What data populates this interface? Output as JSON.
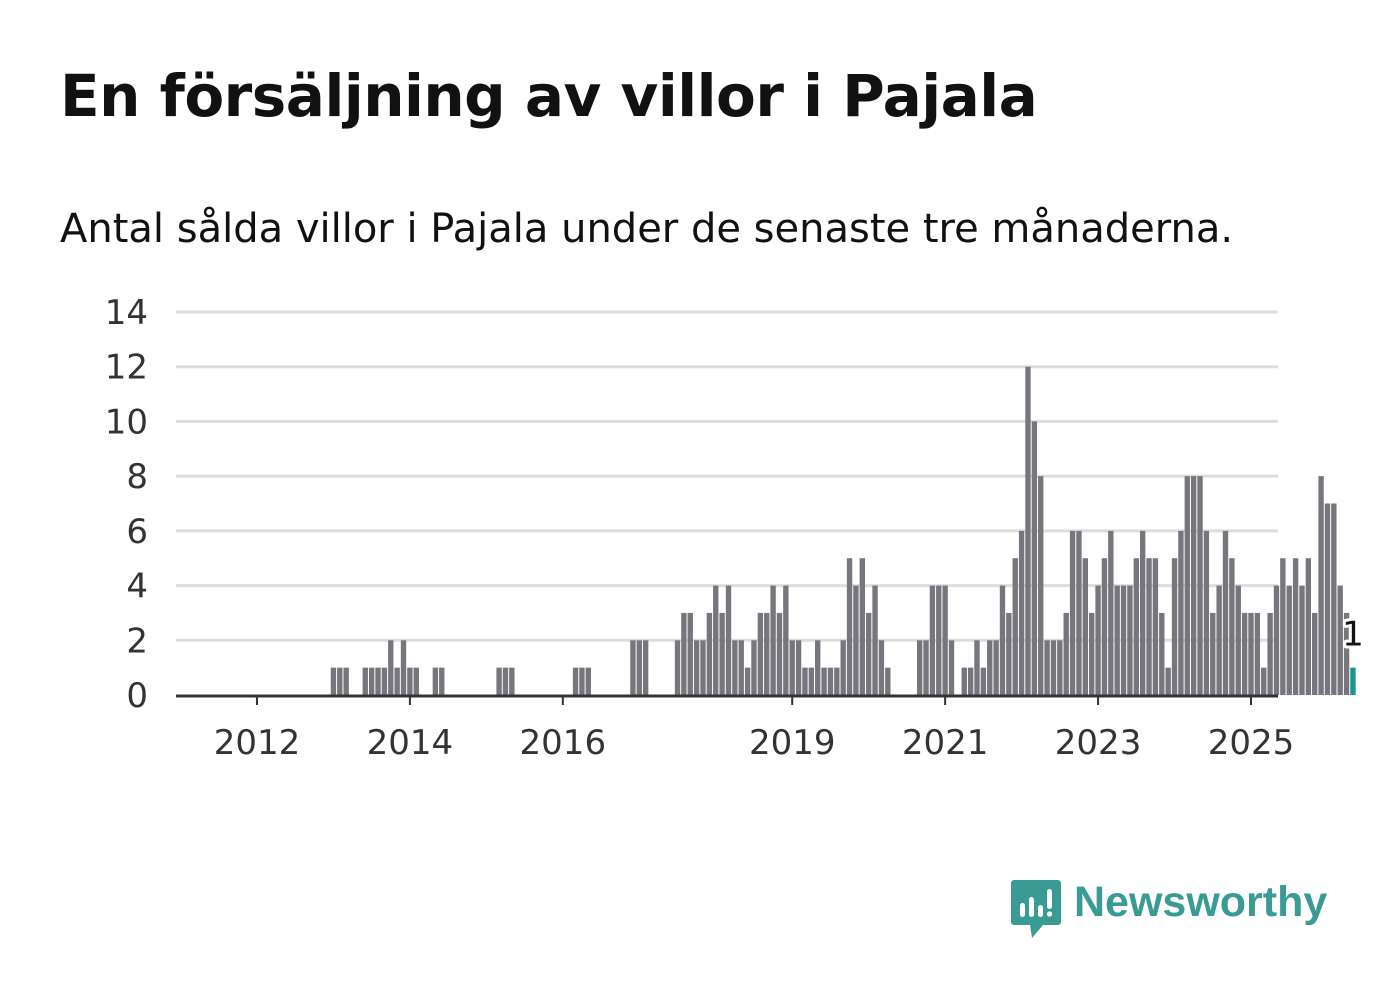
{
  "title": "En försäljning av villor i Pajala",
  "subtitle": "Antal sålda villor i Pajala under de senaste tre månaderna.",
  "brand": {
    "name": "Newsworthy",
    "icon": "newsworthy-logo-icon",
    "color": "#3a9b94"
  },
  "colors": {
    "bar": "#77767c",
    "highlight": "#18958d",
    "grid": "#dddddd",
    "baseline": "#333333"
  },
  "chart_data": {
    "type": "bar",
    "x_start": "2011-01",
    "x_interval": "month",
    "ylim": [
      0,
      14
    ],
    "yticks": [
      0,
      2,
      4,
      6,
      8,
      10,
      12,
      14
    ],
    "xticks": [
      {
        "label": "2012",
        "date": "2012-01"
      },
      {
        "label": "2014",
        "date": "2014-01"
      },
      {
        "label": "2016",
        "date": "2016-01"
      },
      {
        "label": "2019",
        "date": "2019-01"
      },
      {
        "label": "2021",
        "date": "2021-01"
      },
      {
        "label": "2023",
        "date": "2023-01"
      },
      {
        "label": "2025",
        "date": "2025-01"
      }
    ],
    "grid": true,
    "values": [
      0,
      0,
      0,
      0,
      0,
      0,
      0,
      0,
      0,
      0,
      0,
      0,
      0,
      0,
      0,
      0,
      0,
      0,
      0,
      0,
      0,
      0,
      0,
      0,
      1,
      1,
      1,
      0,
      0,
      1,
      1,
      1,
      1,
      2,
      1,
      2,
      1,
      1,
      0,
      0,
      1,
      1,
      0,
      0,
      0,
      0,
      0,
      0,
      0,
      0,
      1,
      1,
      1,
      0,
      0,
      0,
      0,
      0,
      0,
      0,
      0,
      0,
      1,
      1,
      1,
      0,
      0,
      0,
      0,
      0,
      0,
      2,
      2,
      2,
      0,
      0,
      0,
      0,
      2,
      3,
      3,
      2,
      2,
      3,
      4,
      3,
      4,
      2,
      2,
      1,
      2,
      3,
      3,
      4,
      3,
      4,
      2,
      2,
      1,
      1,
      2,
      1,
      1,
      1,
      2,
      5,
      4,
      5,
      3,
      4,
      2,
      1,
      0,
      0,
      0,
      0,
      2,
      2,
      4,
      4,
      4,
      2,
      0,
      1,
      1,
      2,
      1,
      2,
      2,
      4,
      3,
      5,
      6,
      12,
      10,
      8,
      2,
      2,
      2,
      3,
      6,
      6,
      5,
      3,
      4,
      5,
      6,
      4,
      4,
      4,
      5,
      6,
      5,
      5,
      3,
      1,
      5,
      6,
      8,
      8,
      8,
      6,
      3,
      4,
      6,
      5,
      4,
      3,
      3,
      3,
      1,
      3,
      4,
      5,
      4,
      5,
      4,
      5,
      3,
      8,
      7,
      7,
      4,
      3,
      1
    ],
    "highlight_last": true,
    "data_label": {
      "text": "1"
    }
  }
}
